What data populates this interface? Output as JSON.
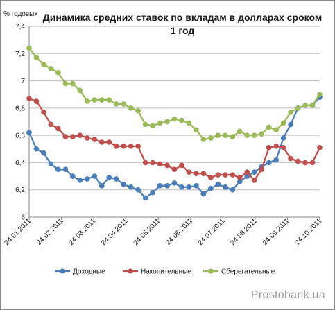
{
  "chart_data": {
    "type": "line",
    "title": "Динамика средних ставок по вкладам в долларах сроком 1 год",
    "title_lines": [
      "Динамика средних ставок по вкладам в долларах сроком",
      "1 год"
    ],
    "ylabel": "% годовых",
    "xlabel": "",
    "ylim": [
      6,
      7.4
    ],
    "y_ticks": [
      "6",
      "6,2",
      "6,4",
      "6,6",
      "6,8",
      "7",
      "7,2",
      "7,4"
    ],
    "x_tick_labels": [
      "24.01.2011",
      "24.02.2011",
      "24.03.2011",
      "24.04.2011",
      "24.05.2011",
      "24.06.2011",
      "24.07.2011",
      "24.08.2011",
      "24.09.2011",
      "24.10.2011"
    ],
    "grid": "horizontal",
    "legend_position": "bottom",
    "series": [
      {
        "name": "Доходные",
        "color": "#4a7ebb",
        "values": [
          6.62,
          6.5,
          6.47,
          6.39,
          6.35,
          6.35,
          6.3,
          6.27,
          6.28,
          6.3,
          6.23,
          6.29,
          6.28,
          6.24,
          6.22,
          6.2,
          6.14,
          6.18,
          6.23,
          6.23,
          6.25,
          6.22,
          6.22,
          6.23,
          6.17,
          6.21,
          6.24,
          6.22,
          6.2,
          6.26,
          6.3,
          6.33,
          6.37,
          6.4,
          6.42,
          6.58,
          6.68,
          6.8,
          6.82,
          6.82,
          6.88
        ]
      },
      {
        "name": "Накопительные",
        "color": "#c0504d",
        "values": [
          6.87,
          6.85,
          6.77,
          6.68,
          6.65,
          6.59,
          6.59,
          6.6,
          6.58,
          6.57,
          6.55,
          6.55,
          6.52,
          6.52,
          6.52,
          6.52,
          6.4,
          6.4,
          6.39,
          6.38,
          6.35,
          6.38,
          6.33,
          6.32,
          6.32,
          6.29,
          6.31,
          6.31,
          6.31,
          6.29,
          6.33,
          6.27,
          6.35,
          6.51,
          6.52,
          6.51,
          6.43,
          6.41,
          6.4,
          6.4,
          6.51
        ]
      },
      {
        "name": "Сберегательные",
        "color": "#9bbb59",
        "values": [
          7.24,
          7.17,
          7.12,
          7.09,
          7.06,
          6.98,
          6.98,
          6.93,
          6.85,
          6.86,
          6.86,
          6.86,
          6.83,
          6.83,
          6.8,
          6.78,
          6.68,
          6.67,
          6.69,
          6.7,
          6.72,
          6.71,
          6.69,
          6.64,
          6.57,
          6.58,
          6.6,
          6.6,
          6.59,
          6.63,
          6.6,
          6.6,
          6.61,
          6.66,
          6.64,
          6.69,
          6.77,
          6.8,
          6.82,
          6.82,
          6.9
        ]
      }
    ]
  },
  "watermark": "Prostobank.ua"
}
